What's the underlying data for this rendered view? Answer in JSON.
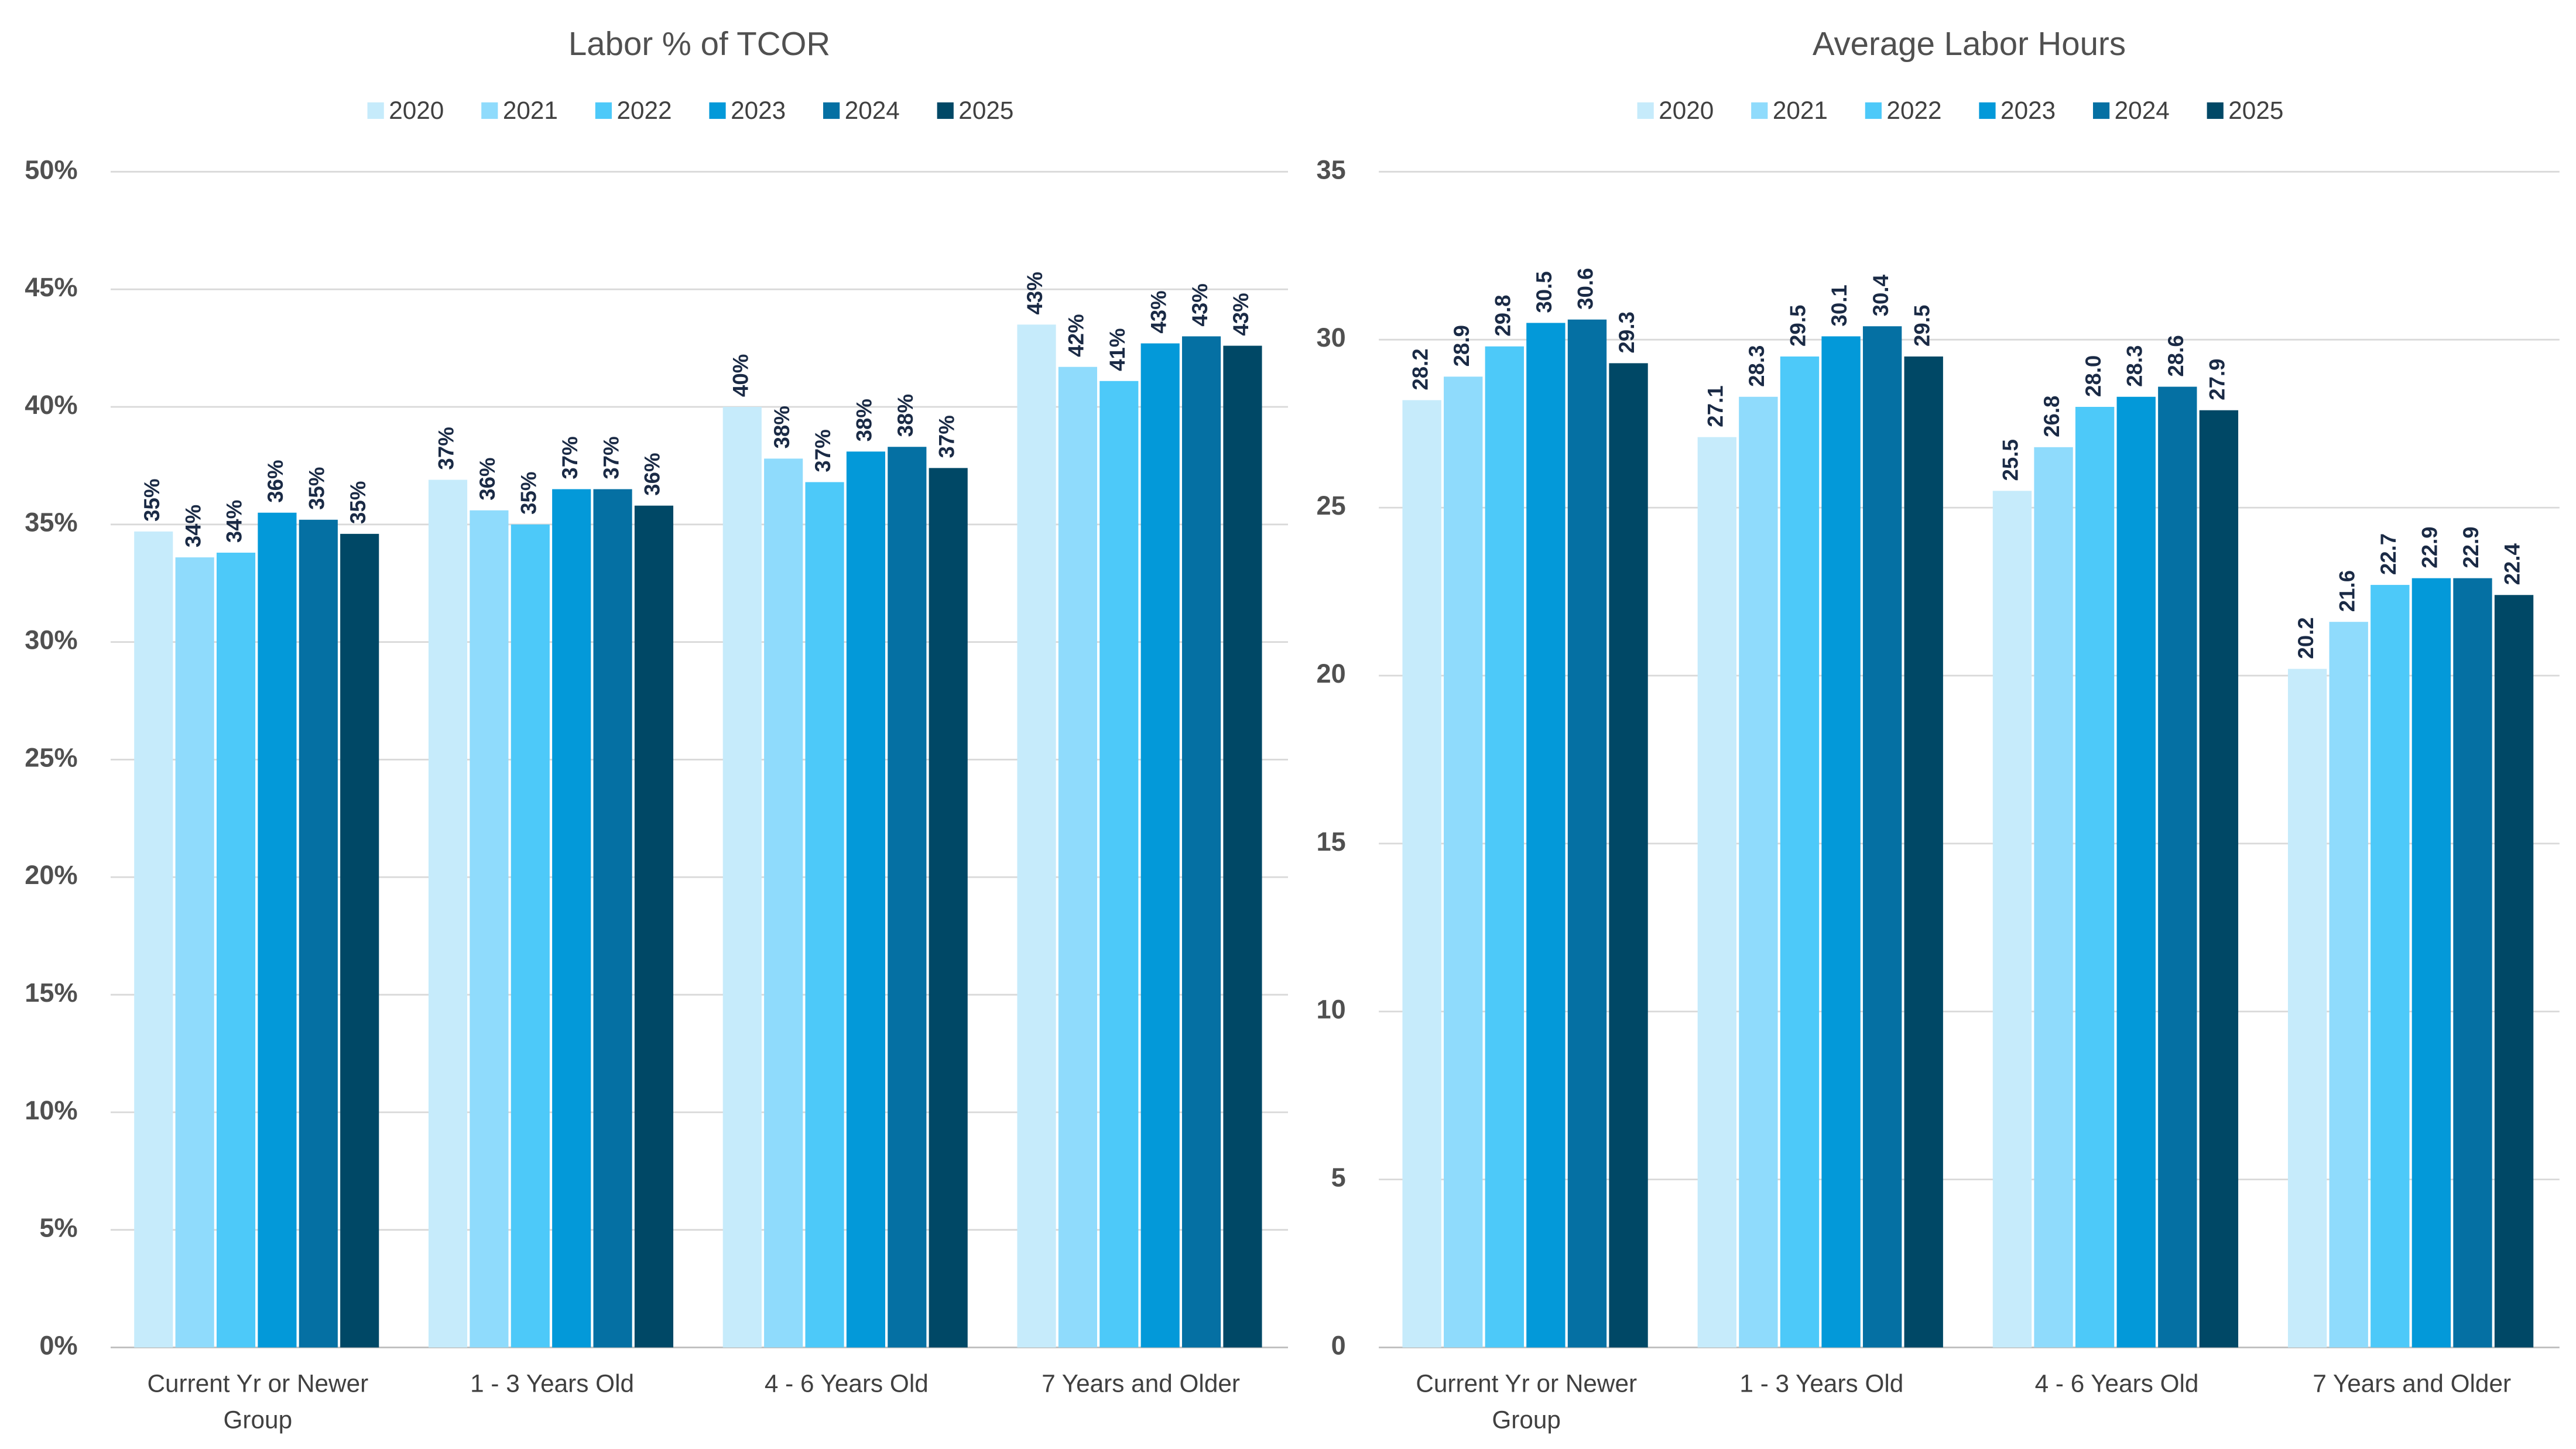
{
  "chart_data": [
    {
      "type": "bar",
      "title": "Labor % of TCOR",
      "categories": [
        "Current Yr or Newer Group",
        "1 - 3 Years Old",
        "4 - 6 Years Old",
        "7 Years and Older"
      ],
      "series": [
        {
          "name": "2020",
          "color": "#c6ebfb",
          "values": [
            34.7,
            36.9,
            40.0,
            43.5
          ],
          "value_labels": [
            "35%",
            "37%",
            "40%",
            "43%"
          ]
        },
        {
          "name": "2021",
          "color": "#8fdbfc",
          "values": [
            33.6,
            35.6,
            37.8,
            41.7
          ],
          "value_labels": [
            "34%",
            "36%",
            "38%",
            "42%"
          ]
        },
        {
          "name": "2022",
          "color": "#4dc9f9",
          "values": [
            33.8,
            35.0,
            36.8,
            41.1
          ],
          "value_labels": [
            "34%",
            "35%",
            "37%",
            "41%"
          ]
        },
        {
          "name": "2023",
          "color": "#0399d9",
          "values": [
            35.5,
            36.5,
            38.1,
            42.7
          ],
          "value_labels": [
            "36%",
            "37%",
            "38%",
            "43%"
          ]
        },
        {
          "name": "2024",
          "color": "#0570a3",
          "values": [
            35.2,
            36.5,
            38.3,
            43.0
          ],
          "value_labels": [
            "35%",
            "37%",
            "38%",
            "43%"
          ]
        },
        {
          "name": "2025",
          "color": "#004866",
          "values": [
            34.6,
            35.8,
            37.4,
            42.6
          ],
          "value_labels": [
            "35%",
            "36%",
            "37%",
            "43%"
          ]
        }
      ],
      "ylim": [
        0,
        50
      ],
      "yticks": [
        {
          "value": 0,
          "label": "0%"
        },
        {
          "value": 5,
          "label": "5%"
        },
        {
          "value": 10,
          "label": "10%"
        },
        {
          "value": 15,
          "label": "15%"
        },
        {
          "value": 20,
          "label": "20%"
        },
        {
          "value": 25,
          "label": "25%"
        },
        {
          "value": 30,
          "label": "30%"
        },
        {
          "value": 35,
          "label": "35%"
        },
        {
          "value": 40,
          "label": "40%"
        },
        {
          "value": 45,
          "label": "45%"
        },
        {
          "value": 50,
          "label": "50%"
        }
      ],
      "grid": true,
      "legend": "top"
    },
    {
      "type": "bar",
      "title": "Average Labor Hours",
      "categories": [
        "Current Yr or Newer Group",
        "1 - 3 Years Old",
        "4 - 6 Years Old",
        "7 Years and Older"
      ],
      "series": [
        {
          "name": "2020",
          "color": "#c6ebfb",
          "values": [
            28.2,
            27.1,
            25.5,
            20.2
          ],
          "value_labels": [
            "28.2",
            "27.1",
            "25.5",
            "20.2"
          ]
        },
        {
          "name": "2021",
          "color": "#8fdbfc",
          "values": [
            28.9,
            28.3,
            26.8,
            21.6
          ],
          "value_labels": [
            "28.9",
            "28.3",
            "26.8",
            "21.6"
          ]
        },
        {
          "name": "2022",
          "color": "#4dc9f9",
          "values": [
            29.8,
            29.5,
            28.0,
            22.7
          ],
          "value_labels": [
            "29.8",
            "29.5",
            "28.0",
            "22.7"
          ]
        },
        {
          "name": "2023",
          "color": "#0399d9",
          "values": [
            30.5,
            30.1,
            28.3,
            22.9
          ],
          "value_labels": [
            "30.5",
            "30.1",
            "28.3",
            "22.9"
          ]
        },
        {
          "name": "2024",
          "color": "#0570a3",
          "values": [
            30.6,
            30.4,
            28.6,
            22.9
          ],
          "value_labels": [
            "30.6",
            "30.4",
            "28.6",
            "22.9"
          ]
        },
        {
          "name": "2025",
          "color": "#004866",
          "values": [
            29.3,
            29.5,
            27.9,
            22.4
          ],
          "value_labels": [
            "29.3",
            "29.5",
            "27.9",
            "22.4"
          ]
        }
      ],
      "ylim": [
        0,
        35
      ],
      "yticks": [
        0,
        5,
        10,
        15,
        20,
        25,
        30,
        35
      ],
      "grid": true,
      "legend": "top"
    }
  ]
}
